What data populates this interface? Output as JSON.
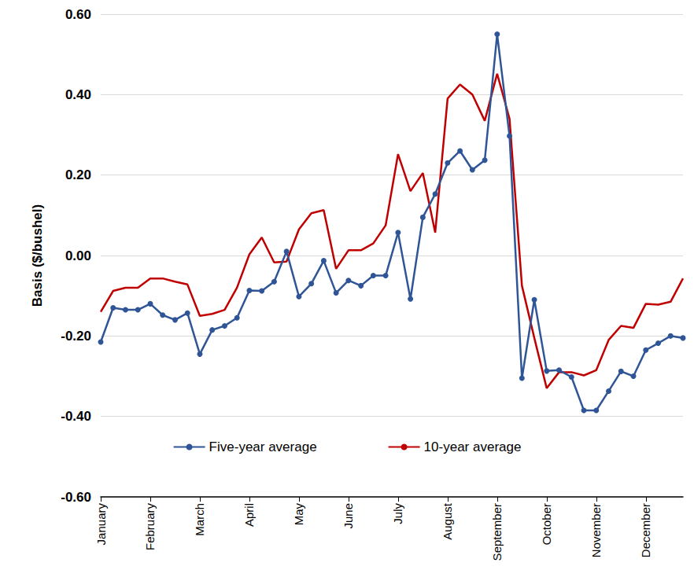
{
  "chart_data": {
    "type": "line",
    "y_label": "Basis ($/bushel)",
    "categories": [
      "January",
      null,
      null,
      null,
      "February",
      null,
      null,
      null,
      "March",
      null,
      null,
      null,
      "April",
      null,
      null,
      null,
      "May",
      null,
      null,
      null,
      "June",
      null,
      null,
      null,
      "July",
      null,
      null,
      null,
      "August",
      null,
      null,
      null,
      "September",
      null,
      null,
      null,
      "October",
      null,
      null,
      null,
      "November",
      null,
      null,
      null,
      "December",
      null,
      null,
      null
    ],
    "series": [
      {
        "name": "Five-year average",
        "color": "#2f5597",
        "marker": "circle",
        "line_style": "solid",
        "values": [
          -0.215,
          -0.13,
          -0.135,
          -0.135,
          -0.12,
          -0.148,
          -0.16,
          -0.143,
          -0.245,
          -0.185,
          -0.175,
          -0.155,
          -0.087,
          -0.088,
          -0.065,
          0.01,
          -0.102,
          -0.07,
          -0.013,
          -0.093,
          -0.062,
          -0.075,
          -0.05,
          -0.05,
          0.057,
          -0.108,
          0.095,
          0.153,
          0.23,
          0.26,
          0.213,
          0.237,
          0.55,
          0.297,
          -0.305,
          -0.11,
          -0.287,
          -0.285,
          -0.302,
          -0.385,
          -0.385,
          -0.337,
          -0.288,
          -0.3,
          -0.235,
          -0.218,
          -0.2,
          -0.205
        ]
      },
      {
        "name": "10-year average",
        "color": "#c00000",
        "marker": "none",
        "line_style": "solid",
        "values": [
          -0.14,
          -0.088,
          -0.08,
          -0.08,
          -0.057,
          -0.057,
          -0.065,
          -0.072,
          -0.15,
          -0.145,
          -0.135,
          -0.08,
          0.003,
          0.045,
          -0.017,
          -0.015,
          0.065,
          0.105,
          0.113,
          -0.033,
          0.013,
          0.013,
          0.03,
          0.075,
          0.252,
          0.16,
          0.205,
          0.057,
          0.39,
          0.425,
          0.4,
          0.335,
          0.452,
          0.34,
          -0.075,
          -0.205,
          -0.33,
          -0.29,
          -0.29,
          -0.298,
          -0.285,
          -0.21,
          -0.175,
          -0.18,
          -0.12,
          -0.122,
          -0.115,
          -0.057
        ]
      }
    ],
    "ylim": [
      -0.6,
      0.6
    ],
    "yticks": [
      {
        "value": -0.6,
        "label": "-0.60"
      },
      {
        "value": -0.4,
        "label": "-0.40"
      },
      {
        "value": -0.2,
        "label": "-0.20"
      },
      {
        "value": 0,
        "label": "0.00"
      },
      {
        "value": 0.2,
        "label": "0.20"
      },
      {
        "value": 0.4,
        "label": "0.40"
      },
      {
        "value": 0.6,
        "label": "0.60"
      }
    ],
    "grid": true,
    "legend": "bottom"
  }
}
